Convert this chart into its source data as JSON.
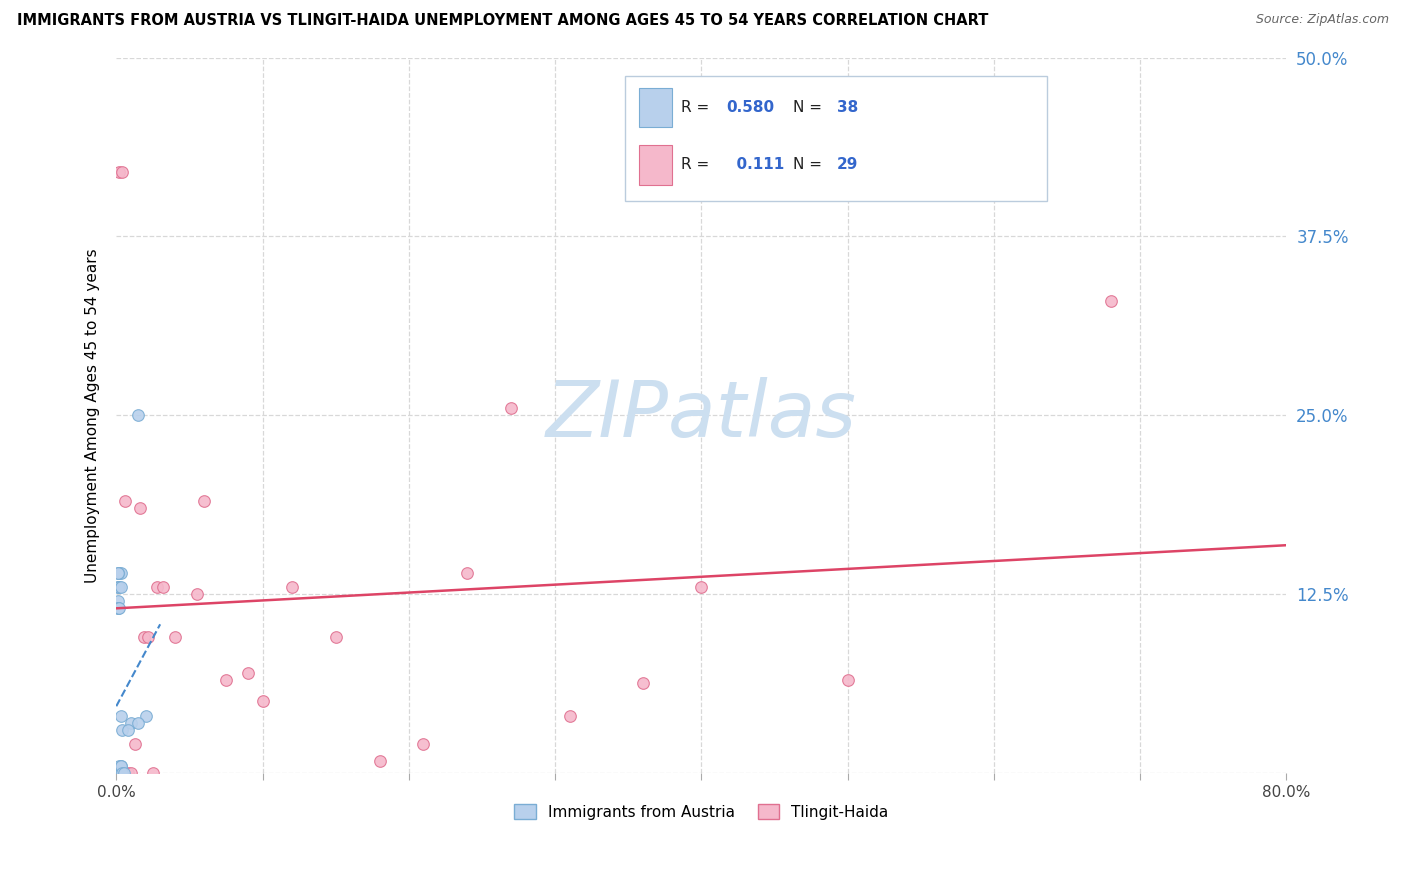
{
  "title": "IMMIGRANTS FROM AUSTRIA VS TLINGIT-HAIDA UNEMPLOYMENT AMONG AGES 45 TO 54 YEARS CORRELATION CHART",
  "source": "Source: ZipAtlas.com",
  "ylabel": "Unemployment Among Ages 45 to 54 years",
  "xlim": [
    0,
    0.8
  ],
  "ylim": [
    0,
    0.5
  ],
  "xtick_positions": [
    0.0,
    0.1,
    0.2,
    0.3,
    0.4,
    0.5,
    0.6,
    0.7,
    0.8
  ],
  "ytick_positions": [
    0.0,
    0.125,
    0.25,
    0.375,
    0.5
  ],
  "ytick_labels": [
    "",
    "12.5%",
    "25.0%",
    "37.5%",
    "50.0%"
  ],
  "austria_x": [
    0.0005,
    0.001,
    0.001,
    0.001,
    0.001,
    0.001,
    0.001,
    0.001,
    0.002,
    0.002,
    0.002,
    0.002,
    0.002,
    0.003,
    0.003,
    0.003,
    0.003,
    0.004,
    0.004,
    0.005,
    0.001,
    0.001,
    0.002,
    0.003,
    0.001,
    0.001,
    0.001,
    0.002,
    0.001,
    0.001,
    0.002,
    0.003,
    0.015,
    0.01,
    0.02,
    0.008,
    0.003,
    0.015
  ],
  "austria_y": [
    0.0,
    0.0,
    0.0,
    0.0,
    0.0,
    0.0,
    0.0,
    0.0,
    0.0,
    0.0,
    0.0,
    0.0,
    0.005,
    0.0,
    0.0,
    0.005,
    0.005,
    0.0,
    0.03,
    0.0,
    0.12,
    0.13,
    0.14,
    0.14,
    0.14,
    0.115,
    0.115,
    0.115,
    0.14,
    0.13,
    0.13,
    0.13,
    0.25,
    0.035,
    0.04,
    0.03,
    0.04,
    0.035
  ],
  "tlingit_x": [
    0.002,
    0.004,
    0.006,
    0.008,
    0.01,
    0.013,
    0.016,
    0.019,
    0.022,
    0.025,
    0.028,
    0.032,
    0.04,
    0.055,
    0.06,
    0.075,
    0.09,
    0.1,
    0.12,
    0.15,
    0.18,
    0.21,
    0.24,
    0.27,
    0.31,
    0.36,
    0.4,
    0.5,
    0.68
  ],
  "tlingit_y": [
    0.42,
    0.42,
    0.19,
    0.0,
    0.0,
    0.02,
    0.185,
    0.095,
    0.095,
    0.0,
    0.13,
    0.13,
    0.095,
    0.125,
    0.19,
    0.065,
    0.07,
    0.05,
    0.13,
    0.095,
    0.008,
    0.02,
    0.14,
    0.255,
    0.04,
    0.063,
    0.13,
    0.065,
    0.33
  ],
  "austria_color": "#b8d0ec",
  "austria_edge": "#7aadd4",
  "tlingit_color": "#f5b8cb",
  "tlingit_edge": "#e07090",
  "austria_trend_color": "#4488cc",
  "tlingit_trend_color": "#dd4466",
  "R_austria": "0.580",
  "N_austria": "38",
  "R_tlingit": "0.111",
  "N_tlingit": "29",
  "watermark": "ZIPatlas",
  "watermark_color": "#ccdff0",
  "grid_color": "#d8d8d8",
  "marker_size": 70
}
